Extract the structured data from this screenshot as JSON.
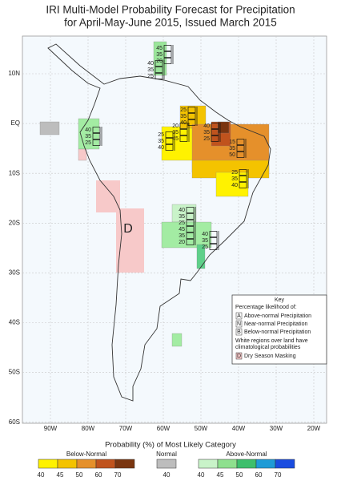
{
  "title": [
    "IRI Multi-Model Probability Forecast for Precipitation",
    "for April-May-June 2015, Issued March 2015"
  ],
  "lat_labels": [
    "10N",
    "EQ",
    "10S",
    "20S",
    "30S",
    "40S",
    "50S",
    "60S"
  ],
  "lon_labels": [
    "90W",
    "80W",
    "70W",
    "60W",
    "50W",
    "40W",
    "30W",
    "20W"
  ],
  "forecasts": [
    [
      45,
      35,
      20
    ],
    [
      40,
      35,
      25
    ],
    [
      25,
      35,
      40
    ],
    [
      20,
      35,
      45
    ],
    [
      40,
      35,
      25
    ],
    [
      25,
      35,
      40
    ],
    [
      15,
      35,
      50
    ],
    [
      25,
      35,
      40
    ],
    [
      40,
      35,
      25
    ],
    [
      40,
      35,
      25
    ],
    [
      45,
      35,
      20
    ],
    [
      40,
      35,
      25
    ]
  ],
  "mask_label": "D",
  "key": {
    "title": "Key",
    "subtitle": "Percentage likelihood of:",
    "items": [
      {
        "letter": "A",
        "text": "Above-normal Precipitation"
      },
      {
        "letter": "N",
        "text": "Near-normal Precipitation"
      },
      {
        "letter": "B",
        "text": "Below-normal Precipitation"
      }
    ],
    "note": [
      "White regions over land have",
      "climatological probabilities"
    ],
    "mask": {
      "letter": "D",
      "text": "Dry Season Masking"
    }
  },
  "legend": {
    "title": "Probability (%) of Most Likely Category",
    "groups": [
      {
        "name": "Below-Normal",
        "levels": [
          40,
          45,
          50,
          60,
          70
        ],
        "colors": [
          "#fff200",
          "#f4c300",
          "#e5902b",
          "#c0531d",
          "#7a3510"
        ]
      },
      {
        "name": "Normal",
        "levels": [
          40
        ],
        "colors": [
          "#bdbdbd"
        ]
      },
      {
        "name": "Above-Normal",
        "levels": [
          40,
          45,
          50,
          60,
          70
        ],
        "colors": [
          "#c9f3c9",
          "#8ee08e",
          "#3dbf6c",
          "#1e9bd6",
          "#1a4ce0"
        ]
      }
    ]
  }
}
